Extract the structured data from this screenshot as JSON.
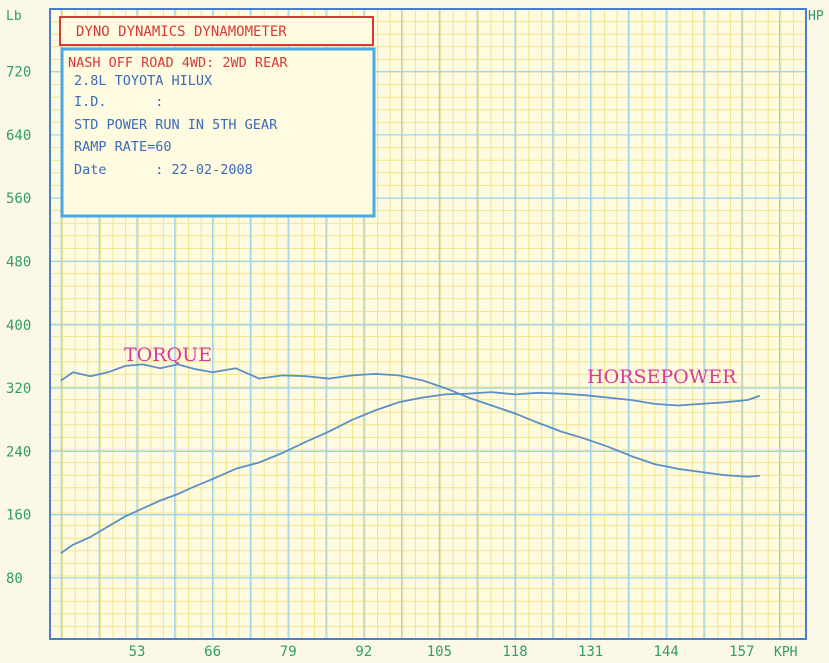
{
  "chart_data": {
    "type": "line",
    "title": "DYNO DYNAMICS DYNAMOMETER",
    "info": {
      "lines": [
        "NASH OFF ROAD 4WD: 2WD REAR",
        "2.8L TOYOTA HILUX",
        "I.D.      :",
        "STD POWER RUN IN 5TH GEAR",
        "RAMP RATE=60",
        "Date      : 22-02-2008"
      ]
    },
    "y_unit_left": "Lb",
    "y_unit_right": "HP",
    "x_unit": "KPH",
    "y_ticks": [
      80,
      160,
      240,
      320,
      400,
      480,
      560,
      640,
      720
    ],
    "x_ticks": [
      53,
      66,
      79,
      92,
      105,
      118,
      131,
      144,
      157
    ],
    "xlim": [
      40,
      168
    ],
    "ylim": [
      0,
      800
    ],
    "grid": true,
    "series": [
      {
        "name": "TORQUE",
        "color": "#5a8fc7",
        "x": [
          40,
          42,
          45,
          48,
          51,
          54,
          57,
          60,
          63,
          66,
          70,
          74,
          78,
          82,
          86,
          90,
          94,
          98,
          102,
          106,
          110,
          114,
          118,
          122,
          126,
          130,
          134,
          138,
          142,
          146,
          150,
          154,
          158,
          160
        ],
        "y": [
          330,
          340,
          335,
          340,
          348,
          350,
          345,
          350,
          344,
          340,
          345,
          332,
          336,
          335,
          332,
          336,
          338,
          336,
          330,
          320,
          308,
          298,
          288,
          276,
          265,
          256,
          246,
          234,
          224,
          218,
          214,
          210,
          208,
          209
        ]
      },
      {
        "name": "HORSEPOWER",
        "color": "#5a8fc7",
        "x": [
          40,
          42,
          45,
          48,
          51,
          54,
          57,
          60,
          63,
          66,
          70,
          74,
          78,
          82,
          86,
          90,
          94,
          98,
          102,
          106,
          110,
          114,
          118,
          122,
          126,
          130,
          134,
          138,
          142,
          146,
          150,
          154,
          158,
          160
        ],
        "y": [
          112,
          122,
          132,
          145,
          158,
          168,
          178,
          186,
          196,
          205,
          218,
          226,
          238,
          252,
          265,
          280,
          292,
          302,
          308,
          312,
          313,
          315,
          312,
          314,
          313,
          311,
          308,
          305,
          300,
          298,
          300,
          302,
          305,
          310
        ]
      }
    ]
  }
}
